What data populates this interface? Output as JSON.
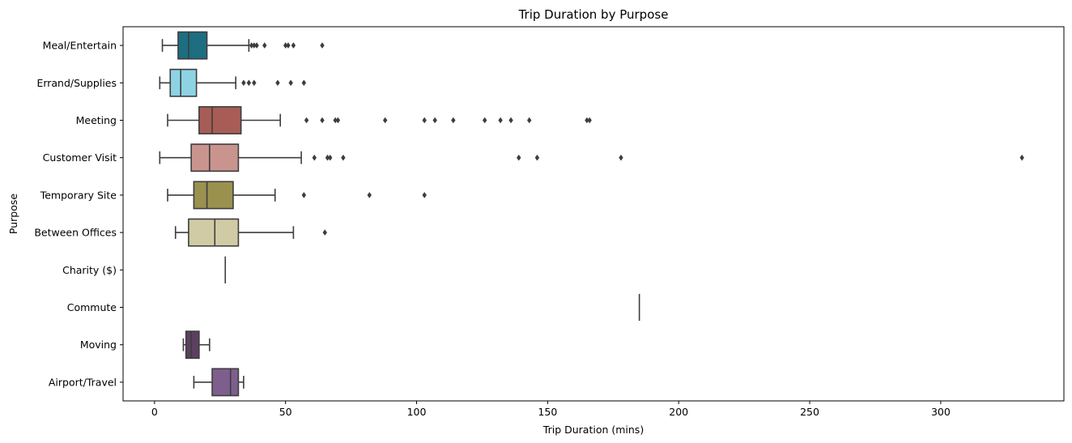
{
  "chart_data": {
    "type": "box",
    "orientation": "horizontal",
    "title": "Trip Duration by Purpose",
    "xlabel": "Trip Duration (mins)",
    "ylabel": "Purpose",
    "xlim": [
      -12,
      347
    ],
    "xticks": [
      0,
      50,
      100,
      150,
      200,
      250,
      300
    ],
    "grid": false,
    "legend": "none",
    "categories": [
      {
        "name": "Meal/Entertain",
        "color": "#1d6e80",
        "whisker_low": 3,
        "q1": 9,
        "median": 13,
        "q3": 20,
        "whisker_high": 36,
        "outliers": [
          37,
          38,
          39,
          42,
          50,
          51,
          53,
          64
        ]
      },
      {
        "name": "Errand/Supplies",
        "color": "#8ed3e4",
        "whisker_low": 2,
        "q1": 6,
        "median": 10,
        "q3": 16,
        "whisker_high": 31,
        "outliers": [
          34,
          36,
          38,
          47,
          52,
          57
        ]
      },
      {
        "name": "Meeting",
        "color": "#a85c56",
        "whisker_low": 5,
        "q1": 17,
        "median": 22,
        "q3": 33,
        "whisker_high": 48,
        "outliers": [
          58,
          64,
          69,
          70,
          88,
          103,
          107,
          114,
          126,
          132,
          136,
          143,
          165,
          166
        ]
      },
      {
        "name": "Customer Visit",
        "color": "#c9948e",
        "whisker_low": 2,
        "q1": 14,
        "median": 21,
        "q3": 32,
        "whisker_high": 56,
        "outliers": [
          61,
          66,
          67,
          72,
          139,
          146,
          178,
          331
        ]
      },
      {
        "name": "Temporary Site",
        "color": "#9b914f",
        "whisker_low": 5,
        "q1": 15,
        "median": 20,
        "q3": 30,
        "whisker_high": 46,
        "outliers": [
          57,
          82,
          103
        ]
      },
      {
        "name": "Between Offices",
        "color": "#d1cba5",
        "whisker_low": 8,
        "q1": 13,
        "median": 23,
        "q3": 32,
        "whisker_high": 53,
        "outliers": [
          65
        ]
      },
      {
        "name": "Charity ($)",
        "color": "#666666",
        "whisker_low": 27,
        "q1": 27,
        "median": 27,
        "q3": 27,
        "whisker_high": 27,
        "outliers": []
      },
      {
        "name": "Commute",
        "color": "#666666",
        "whisker_low": 185,
        "q1": 185,
        "median": 185,
        "q3": 185,
        "whisker_high": 185,
        "outliers": []
      },
      {
        "name": "Moving",
        "color": "#5d3f62",
        "whisker_low": 11,
        "q1": 12,
        "median": 14,
        "q3": 17,
        "whisker_high": 21,
        "outliers": []
      },
      {
        "name": "Airport/Travel",
        "color": "#7e5e8d",
        "whisker_low": 15,
        "q1": 22,
        "median": 29,
        "q3": 32,
        "whisker_high": 34,
        "outliers": []
      }
    ]
  }
}
